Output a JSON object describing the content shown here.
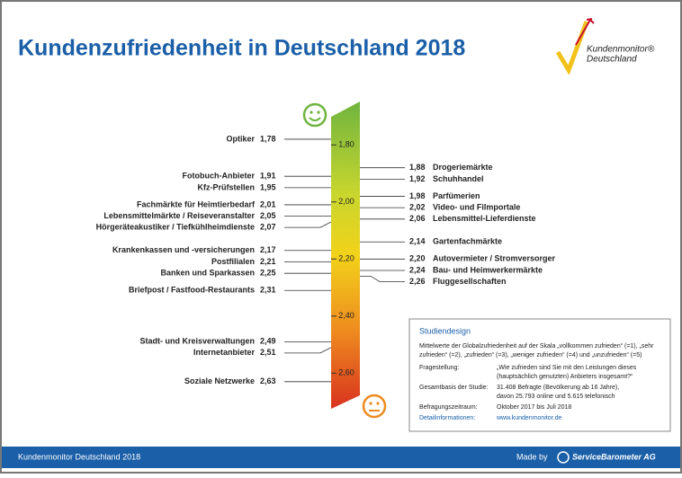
{
  "chart_data": {
    "type": "scale",
    "title": "Kundenzufriedenheit in Deutschland 2018",
    "ylim": [
      1.67,
      2.72
    ],
    "yticks": [
      {
        "value": 1.8,
        "label": "1,80"
      },
      {
        "value": 2.0,
        "label": "2,00"
      },
      {
        "value": 2.2,
        "label": "2,20"
      },
      {
        "value": 2.4,
        "label": "2,40"
      },
      {
        "value": 2.6,
        "label": "2,60"
      }
    ],
    "groups": [
      {
        "categories": [
          "Optiker",
          "Fotobuch-Anbieter",
          "Kfz-Prüfstellen",
          "Fachmärkte für Heimtierbedarf",
          "Lebensmittelmärkte / Reiseveranstalter",
          "Hörgeräteakustiker / Tiefkühlheimdienste",
          "Krankenkassen und -versicherungen",
          "Postfilialen",
          "Banken und Sparkassen",
          "Briefpost / Fastfood-Restaurants",
          "Stadt- und Kreisverwaltungen",
          "Internetanbieter",
          "Soziale Netzwerke"
        ],
        "values": [
          1.78,
          1.91,
          1.95,
          2.01,
          2.05,
          2.07,
          2.17,
          2.21,
          2.25,
          2.31,
          2.49,
          2.51,
          2.63
        ],
        "value_labels": [
          "1,78",
          "1,91",
          "1,95",
          "2,01",
          "2,05",
          "2,07",
          "2,17",
          "2,21",
          "2,25",
          "2,31",
          "2,49",
          "2,51",
          "2,63"
        ]
      },
      {
        "categories": [
          "Drogeriemärkte",
          "Schuhhandel",
          "Parfümerien",
          "Video- und Filmportale",
          "Lebensmittel-Lieferdienste",
          "Gartenfachmärkte",
          "Autovermieter / Stromversorger",
          "Bau- und Heimwerkermärkte",
          "Fluggesellschaften"
        ],
        "values": [
          1.88,
          1.92,
          1.98,
          2.02,
          2.06,
          2.14,
          2.2,
          2.24,
          2.26
        ],
        "value_labels": [
          "1,88",
          "1,92",
          "1,98",
          "2,02",
          "2,06",
          "2,14",
          "2,20",
          "2,24",
          "2,26"
        ]
      }
    ]
  },
  "logo": {
    "line1": "Kundenmonitor®",
    "line2": "Deutschland"
  },
  "study_design": {
    "title": "Studiendesign",
    "intro": [
      "Mittelwerte der Globalzufriedenheit auf der Skala „vollkommen zufrieden“ (=1), „sehr",
      "zufrieden“ (=2), „zufrieden“ (=3), „weniger zufrieden“ (=4) und „unzufrieden“ (=5)"
    ],
    "rows": [
      {
        "label": "Fragestellung:",
        "lines": [
          "„Wie zufrieden sind Sie mit den Leistungen dieses",
          "(hauptsächlich genutzten) Anbieters insgesamt?“"
        ]
      },
      {
        "label": "Gesamtbasis der Studie:",
        "lines": [
          "31.408 Befragte (Bevölkerung ab 16 Jahre),",
          "davon 25.793 online und 5.615 telefonisch"
        ]
      },
      {
        "label": "Befragungszeitraum:",
        "lines": [
          "Oktober 2017 bis Juli 2018"
        ]
      },
      {
        "label": "Detailinformationen:",
        "lines": [
          "www.kundenmonitor.de"
        ]
      }
    ]
  },
  "footer": {
    "left": "Kundenmonitor Deutschland 2018",
    "made_by": "Made by",
    "brand": "ServiceBarometer AG"
  }
}
